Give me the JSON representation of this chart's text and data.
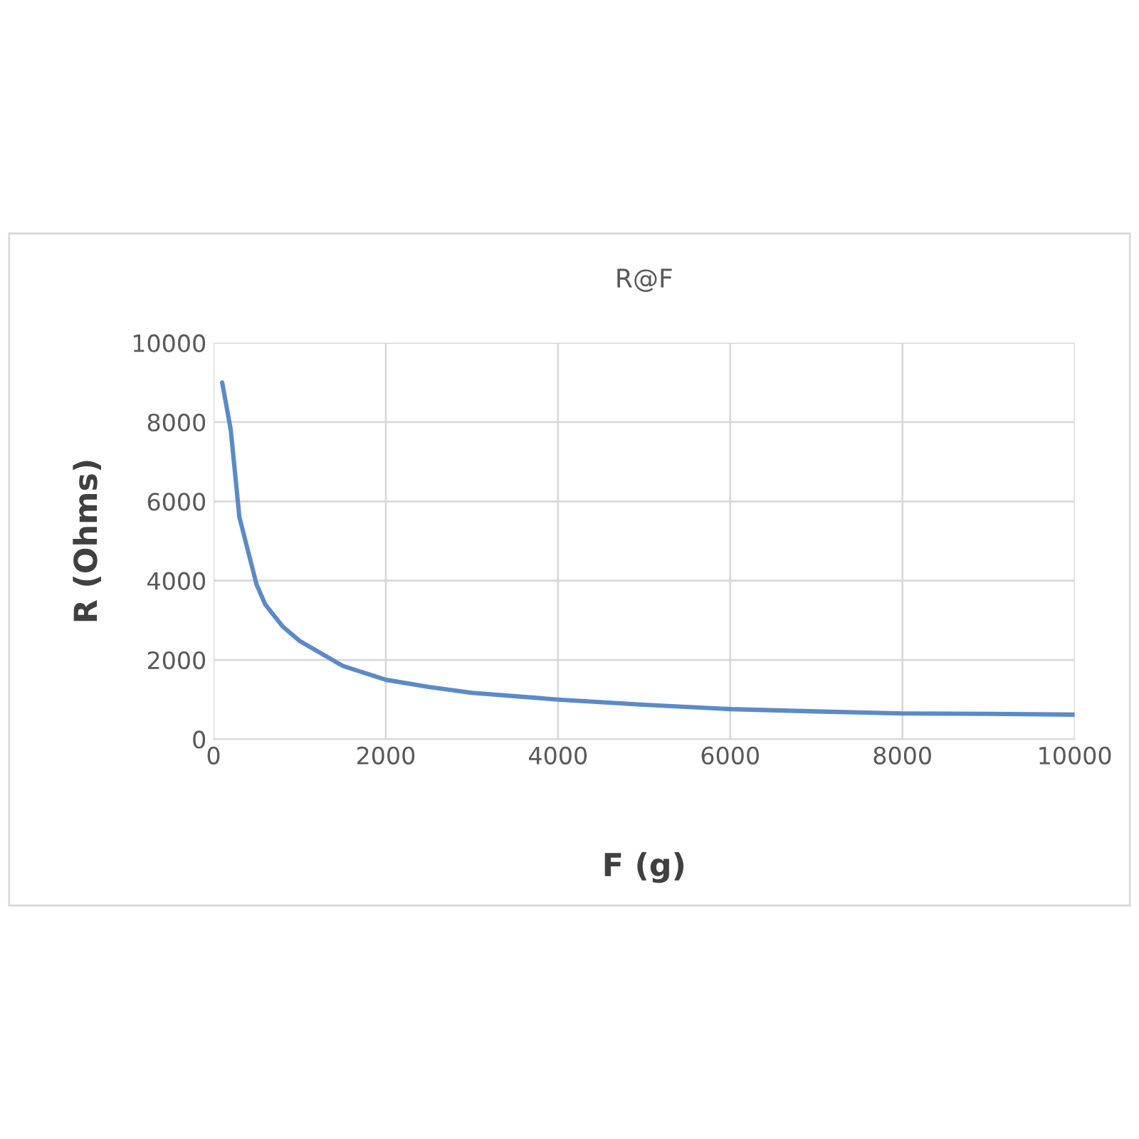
{
  "chart_data": {
    "type": "line",
    "title": "R@F",
    "xlabel": "F (g)",
    "ylabel": "R (Ohms)",
    "x": [
      100,
      200,
      300,
      500,
      600,
      800,
      1000,
      1500,
      2000,
      2500,
      3000,
      4000,
      5000,
      6000,
      7000,
      8000,
      9000,
      10000
    ],
    "series": [
      {
        "color": "#5b8ac6",
        "values": [
          9000,
          7800,
          5600,
          3900,
          3400,
          2850,
          2480,
          1850,
          1500,
          1320,
          1170,
          1000,
          870,
          760,
          700,
          650,
          640,
          620
        ]
      }
    ],
    "xlim": [
      0,
      10000
    ],
    "xticks": [
      0,
      2000,
      4000,
      6000,
      8000,
      10000
    ],
    "ylim": [
      0,
      10000
    ],
    "yticks": [
      0,
      2000,
      4000,
      6000,
      8000,
      10000
    ],
    "grid": true,
    "marker": "none",
    "line_style": "solid"
  }
}
